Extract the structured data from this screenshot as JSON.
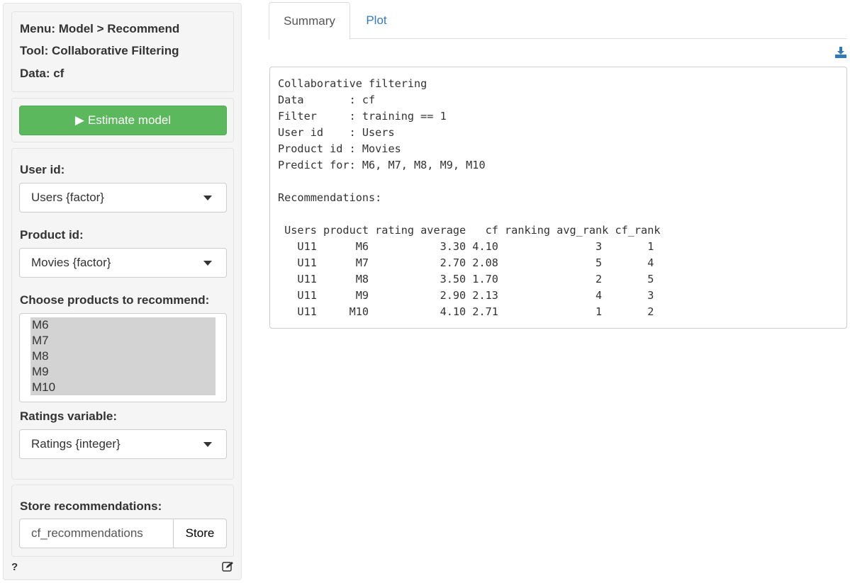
{
  "sidebar": {
    "menu": "Menu: Model > Recommend",
    "tool": "Tool: Collaborative Filtering",
    "data": "Data: cf",
    "estimate_label": "Estimate model",
    "user_id_label": "User id:",
    "user_id_value": "Users {factor}",
    "product_id_label": "Product id:",
    "product_id_value": "Movies {factor}",
    "choose_label": "Choose products to recommend:",
    "products": [
      "M6",
      "M7",
      "M8",
      "M9",
      "M10"
    ],
    "ratings_label": "Ratings variable:",
    "ratings_value": "Ratings {integer}",
    "store_label": "Store recommendations:",
    "store_value": "cf_recommendations",
    "store_button": "Store",
    "help": "?"
  },
  "tabs": [
    {
      "label": "Summary",
      "active": true
    },
    {
      "label": "Plot",
      "active": false
    }
  ],
  "colors": {
    "accent": "#337ab7",
    "success": "#5cb85c"
  },
  "output": {
    "lines": [
      "Collaborative filtering",
      "Data       : cf",
      "Filter     : training == 1",
      "User id    : Users",
      "Product id : Movies",
      "Predict for: M6, M7, M8, M9, M10",
      "",
      "Recommendations:",
      "",
      " Users product rating average   cf ranking avg_rank cf_rank",
      "   U11      M6           3.30 4.10               3       1",
      "   U11      M7           2.70 2.08               5       4",
      "   U11      M8           3.50 1.70               2       5",
      "   U11      M9           2.90 2.13               4       3",
      "   U11     M10           4.10 2.71               1       2"
    ]
  }
}
